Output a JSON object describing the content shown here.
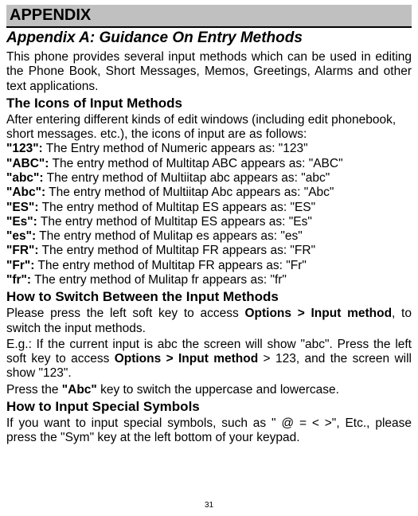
{
  "header": "APPENDIX",
  "subtitle": "Appendix A: Guidance On Entry Methods",
  "intro": "This phone provides several input methods which can be used in editing the Phone Book, Short Messages, Memos, Greetings, Alarms and other text applications.",
  "icons_heading": "The Icons of Input Methods",
  "icons_intro": "After entering different kinds of edit windows (including edit phonebook, short messages. etc.), the icons of input are as follows:",
  "methods": [
    {
      "label": "\"123\":",
      "text": " The Entry method of Numeric appears as: \"123\""
    },
    {
      "label": "\"ABC\":",
      "text": " The entry method of Multitap ABC appears as: \"ABC\""
    },
    {
      "label": "\"abc\":",
      "text": " The   entry method of Multiitap abc appears as: \"abc\""
    },
    {
      "label": "\"Abc\":",
      "text": " The entry method of Multiitap Abc appears as: \"Abc\""
    },
    {
      "label": "\"ES\":",
      "text": " The entry method of Multitap ES appears as: \"ES\""
    },
    {
      "label": "\"Es\":",
      "text": " The entry method of Multitap ES appears as: \"Es\""
    },
    {
      "label": "\"es\":",
      "text": " The   entry method of Mulitap es appears as: \"es\""
    },
    {
      "label": "\"FR\":",
      "text": " The entry method of Multitap FR appears as: \"FR\""
    },
    {
      "label": "\"Fr\":",
      "text": " The entry method of Multitap FR appears as: \"Fr\""
    },
    {
      "label": "\"fr\":",
      "text": " The   entry method of Mulitap fr appears as: \"fr\""
    }
  ],
  "switch_heading": "How to Switch Between the Input Methods",
  "switch_p1_a": "Please press the left soft key to access ",
  "switch_p1_b": "Options > Input method",
  "switch_p1_c": ", to switch the input methods.",
  "switch_p2_a": "E.g.: If the current input is abc the screen will show \"abc\". Press the left soft key to access ",
  "switch_p2_b": "Options > Input method",
  "switch_p2_c": " > 123, and the screen will show \"123\".",
  "switch_p3_a": "Press the ",
  "switch_p3_b": "\"Abc\"",
  "switch_p3_c": " key to switch the uppercase and lowercase.",
  "symbols_heading": "How to Input Special Symbols",
  "symbols_p": "If you want to input special symbols, such as \" @ = < >\", Etc., please press the \"Sym\" key at the left bottom of your keypad.",
  "page_num": "31"
}
